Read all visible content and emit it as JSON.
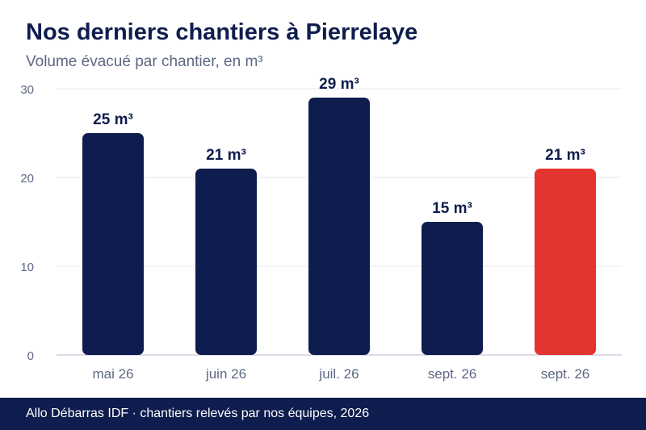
{
  "header": {
    "title": "Nos derniers chantiers à Pierrelaye",
    "subtitle": "Volume évacué par chantier, en m³"
  },
  "footer": {
    "text": "Allo Débarras IDF · chantiers relevés par nos équipes, 2026"
  },
  "colors": {
    "bar": "#0f1d4e",
    "highlight": "#e3342f",
    "grid": "#e6e8ef",
    "axis": "#c5c8d6",
    "tick_text": "#5d6784",
    "label_text": "#0f1d4e"
  },
  "chart_data": {
    "type": "bar",
    "title": "Nos derniers chantiers à Pierrelaye",
    "subtitle": "Volume évacué par chantier, en m³",
    "categories": [
      "mai 26",
      "juin 26",
      "juil. 26",
      "sept. 26",
      "sept. 26"
    ],
    "values": [
      25,
      21,
      29,
      15,
      21
    ],
    "data_labels": [
      "25 m³",
      "21 m³",
      "29 m³",
      "15 m³",
      "21 m³"
    ],
    "highlight_index": 4,
    "ylim": [
      0,
      30
    ],
    "yticks": [
      0,
      10,
      20,
      30
    ],
    "grid": true,
    "legend": "none"
  }
}
